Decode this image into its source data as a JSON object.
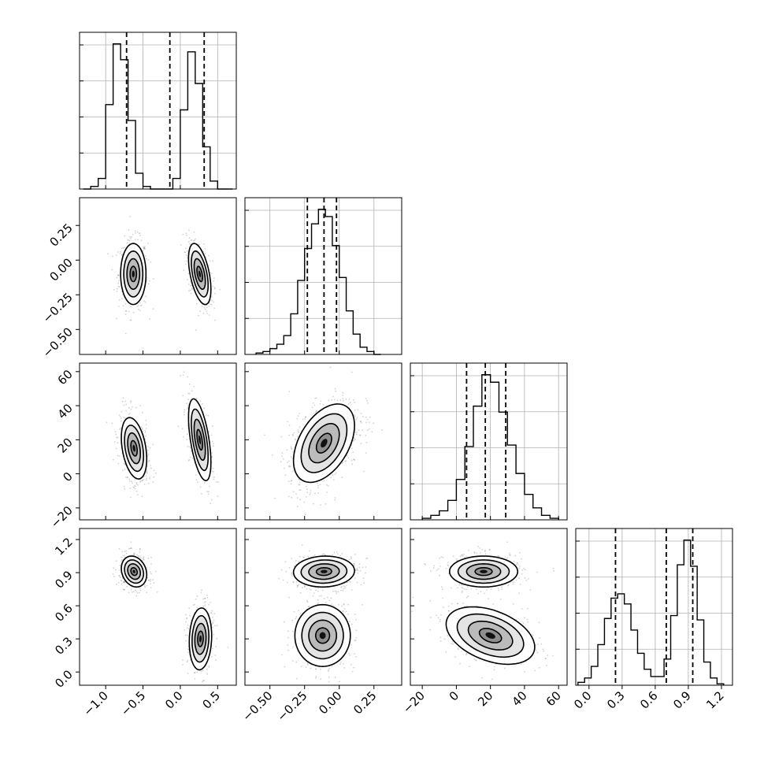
{
  "chart_data": {
    "type": "corner",
    "colors": {
      "lines": "#000000",
      "grid": "#b0b0b0",
      "points": "#7f7f7f"
    },
    "grid": true,
    "parameters": [
      {
        "index": 0,
        "xlim": [
          -1.35,
          0.75
        ],
        "ticks": [
          -1.0,
          -0.5,
          0.0,
          0.5
        ],
        "tick_labels": [
          "−1.0",
          "−0.5",
          "0.0",
          "0.5"
        ]
      },
      {
        "index": 1,
        "xlim": [
          -0.68,
          0.45
        ],
        "ticks": [
          -0.5,
          -0.25,
          0.0,
          0.25
        ],
        "tick_labels": [
          "−0.50",
          "−0.25",
          "0.00",
          "0.25"
        ]
      },
      {
        "index": 2,
        "xlim": [
          -27,
          65
        ],
        "ticks": [
          -20,
          0,
          20,
          40,
          60
        ],
        "tick_labels": [
          "−20",
          "0",
          "20",
          "40",
          "60"
        ]
      },
      {
        "index": 3,
        "xlim": [
          -0.12,
          1.3
        ],
        "ticks": [
          0.0,
          0.3,
          0.6,
          0.9,
          1.2
        ],
        "tick_labels": [
          "0.0",
          "0.3",
          "0.6",
          "0.9",
          "1.2"
        ]
      }
    ],
    "histograms": [
      {
        "param": 0,
        "edges": [
          -1.3,
          -1.2,
          -1.1,
          -1.0,
          -0.9,
          -0.8,
          -0.7,
          -0.6,
          -0.5,
          -0.4,
          -0.3,
          -0.2,
          -0.1,
          0.0,
          0.1,
          0.2,
          0.3,
          0.4,
          0.5,
          0.6,
          0.7
        ],
        "heights": [
          0.0,
          0.01,
          0.04,
          0.32,
          0.55,
          0.49,
          0.26,
          0.06,
          0.01,
          0.0,
          0.0,
          0.0,
          0.04,
          0.3,
          0.52,
          0.4,
          0.16,
          0.03,
          0.0,
          0.0
        ],
        "quantiles": [
          -0.72,
          -0.14,
          0.32
        ]
      },
      {
        "param": 1,
        "edges": [
          -0.6,
          -0.55,
          -0.5,
          -0.45,
          -0.4,
          -0.35,
          -0.3,
          -0.25,
          -0.2,
          -0.15,
          -0.1,
          -0.05,
          0.0,
          0.05,
          0.1,
          0.15,
          0.2,
          0.25,
          0.3
        ],
        "heights": [
          0.01,
          0.02,
          0.04,
          0.07,
          0.13,
          0.28,
          0.51,
          0.73,
          0.9,
          1.0,
          0.95,
          0.75,
          0.53,
          0.3,
          0.14,
          0.05,
          0.02,
          0.0
        ],
        "quantiles": [
          -0.23,
          -0.11,
          -0.02
        ]
      },
      {
        "param": 2,
        "edges": [
          -20,
          -15,
          -10,
          -5,
          0,
          5,
          10,
          15,
          20,
          25,
          30,
          35,
          40,
          45,
          50,
          55,
          60
        ],
        "heights": [
          0.01,
          0.03,
          0.06,
          0.13,
          0.27,
          0.49,
          0.76,
          0.97,
          0.92,
          0.72,
          0.5,
          0.31,
          0.17,
          0.08,
          0.03,
          0.01
        ],
        "quantiles": [
          6,
          17,
          29
        ]
      },
      {
        "param": 3,
        "edges": [
          -0.1,
          -0.04,
          0.02,
          0.08,
          0.14,
          0.2,
          0.26,
          0.32,
          0.38,
          0.44,
          0.5,
          0.56,
          0.62,
          0.68,
          0.74,
          0.8,
          0.86,
          0.92,
          0.98,
          1.04,
          1.1,
          1.16,
          1.22
        ],
        "heights": [
          0.02,
          0.05,
          0.13,
          0.28,
          0.46,
          0.6,
          0.63,
          0.56,
          0.38,
          0.22,
          0.11,
          0.06,
          0.06,
          0.18,
          0.48,
          0.83,
          1.0,
          0.82,
          0.45,
          0.16,
          0.05,
          0.01
        ],
        "quantiles": [
          0.24,
          0.7,
          0.94
        ]
      }
    ],
    "panels_2d": [
      {
        "row": 1,
        "col": 0,
        "clusters": [
          {
            "center": [
              -0.63,
              -0.1
            ],
            "sd": [
              0.085,
              0.11
            ],
            "rho": 0.0,
            "weight": 0.55
          },
          {
            "center": [
              0.26,
              -0.1
            ],
            "sd": [
              0.075,
              0.11
            ],
            "rho": -0.5,
            "weight": 0.45
          }
        ]
      },
      {
        "row": 2,
        "col": 0,
        "clusters": [
          {
            "center": [
              -0.62,
              15
            ],
            "sd": [
              0.085,
              9
            ],
            "rho": -0.35,
            "weight": 0.55
          },
          {
            "center": [
              0.26,
              20
            ],
            "sd": [
              0.075,
              12
            ],
            "rho": -0.55,
            "weight": 0.45
          }
        ]
      },
      {
        "row": 2,
        "col": 1,
        "clusters": [
          {
            "center": [
              -0.11,
              18
            ],
            "sd": [
              0.11,
              11.5
            ],
            "rho": 0.45,
            "weight": 1.0
          }
        ]
      },
      {
        "row": 3,
        "col": 0,
        "clusters": [
          {
            "center": [
              -0.62,
              0.91
            ],
            "sd": [
              0.085,
              0.07
            ],
            "rho": -0.2,
            "weight": 0.55
          },
          {
            "center": [
              0.27,
              0.3
            ],
            "sd": [
              0.075,
              0.14
            ],
            "rho": 0.1,
            "weight": 0.45
          }
        ]
      },
      {
        "row": 3,
        "col": 1,
        "clusters": [
          {
            "center": [
              -0.11,
              0.91
            ],
            "sd": [
              0.11,
              0.07
            ],
            "rho": 0.05,
            "weight": 0.55
          },
          {
            "center": [
              -0.12,
              0.33
            ],
            "sd": [
              0.1,
              0.14
            ],
            "rho": 0.0,
            "weight": 0.45
          }
        ]
      },
      {
        "row": 3,
        "col": 2,
        "clusters": [
          {
            "center": [
              16,
              0.91
            ],
            "sd": [
              10,
              0.07
            ],
            "rho": 0.0,
            "weight": 0.55
          },
          {
            "center": [
              20,
              0.33
            ],
            "sd": [
              13,
              0.13
            ],
            "rho": -0.4,
            "weight": 0.45
          }
        ]
      }
    ]
  }
}
